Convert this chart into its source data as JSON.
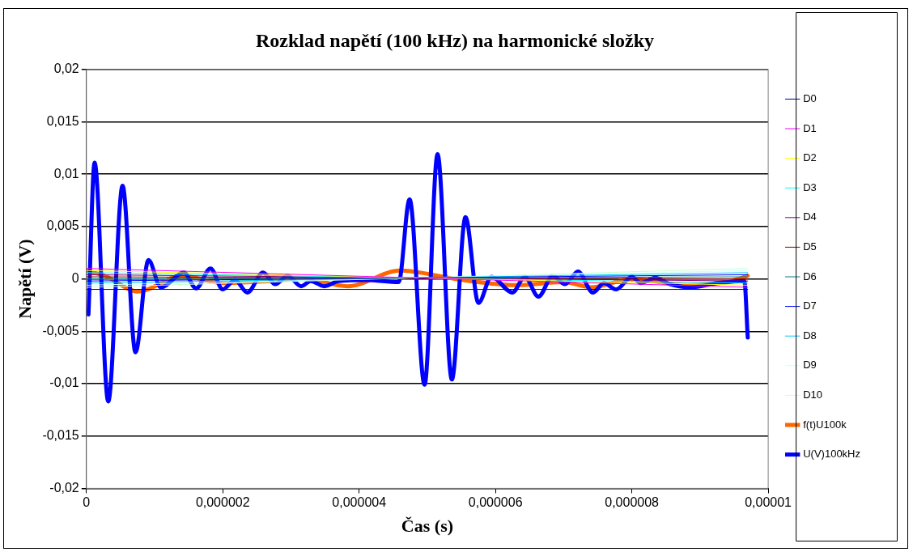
{
  "chart_data": {
    "type": "line",
    "title": "Rozklad napětí (100 kHz) na harmonické složky",
    "xlabel": "Čas (s)",
    "ylabel": "Napětí (V)",
    "xlim": [
      0,
      1e-05
    ],
    "xticks": [
      0,
      {
        "value": 2e-06,
        "label": "0,000002"
      },
      {
        "value": 4e-06,
        "label": "0,000004"
      },
      {
        "value": 6e-06,
        "label": "0,000006"
      },
      {
        "value": 8e-06,
        "label": "0,000008"
      },
      {
        "value": 1e-05,
        "label": "0,00001"
      }
    ],
    "ylim": [
      -0.02,
      0.02
    ],
    "yticks": [
      {
        "value": -0.02,
        "label": "-0,02"
      },
      {
        "value": -0.015,
        "label": "-0,015"
      },
      {
        "value": -0.01,
        "label": "-0,01"
      },
      {
        "value": -0.005,
        "label": "-0,005"
      },
      0,
      {
        "value": 0.005,
        "label": "0,005"
      },
      {
        "value": 0.01,
        "label": "0,01"
      },
      {
        "value": 0.015,
        "label": "0,015"
      },
      {
        "value": 0.02,
        "label": "0,02"
      }
    ],
    "grid": "y",
    "legend": "right",
    "marker": "none",
    "line_style": "solid",
    "series": [
      {
        "name": "D0",
        "color": "#000080",
        "x": [
          0,
          9.7e-06
        ],
        "values": [
          -0.001,
          -0.001
        ]
      },
      {
        "name": "D1",
        "color": "#ff00ff",
        "x": [
          0,
          9.7e-06
        ],
        "values": [
          0.001,
          -0.0008
        ]
      },
      {
        "name": "D2",
        "color": "#ffff00",
        "x": [
          0,
          9.7e-06
        ],
        "values": [
          0.0008,
          -0.0006
        ]
      },
      {
        "name": "D3",
        "color": "#00ffff",
        "x": [
          0,
          9.7e-06
        ],
        "values": [
          0.0006,
          -0.0004
        ]
      },
      {
        "name": "D4",
        "color": "#800080",
        "x": [
          0,
          9.7e-06
        ],
        "values": [
          0.0004,
          -0.0002
        ]
      },
      {
        "name": "D5",
        "color": "#800000",
        "x": [
          0,
          9.7e-06
        ],
        "values": [
          0.0002,
          0
        ]
      },
      {
        "name": "D6",
        "color": "#008080",
        "x": [
          0,
          9.7e-06
        ],
        "values": [
          0,
          0.0002
        ]
      },
      {
        "name": "D7",
        "color": "#0000ff",
        "x": [
          0,
          9.7e-06
        ],
        "values": [
          -0.0002,
          0.0004
        ]
      },
      {
        "name": "D8",
        "color": "#00ccff",
        "x": [
          0,
          9.7e-06
        ],
        "values": [
          -0.0004,
          0.0006
        ]
      },
      {
        "name": "D9",
        "color": "#ccffff",
        "x": [
          0,
          9.7e-06
        ],
        "values": [
          -0.0006,
          0.0008
        ]
      },
      {
        "name": "D10",
        "color": "#ccffcc",
        "x": [
          0,
          9.7e-06
        ],
        "values": [
          -0.0008,
          0.001
        ]
      },
      {
        "name": "f(t)U100k",
        "color": "#ff6600",
        "x": [
          0,
          3e-07,
          7.5e-07,
          1.4e-06,
          2e-06,
          2.7e-06,
          3.2e-06,
          3.83e-06,
          4.6e-06,
          5.5e-06,
          6.3e-06,
          7e-06,
          7.4e-06,
          8e-06,
          8.8e-06,
          9.5e-06,
          9.7e-06
        ],
        "values": [
          0.0008,
          0.0002,
          -0.0012,
          0.0003,
          -0.0004,
          -0.0002,
          0,
          -0.0007,
          0.0008,
          -0.0001,
          -0.0006,
          -0.0003,
          -0.0008,
          0,
          -0.0006,
          -0.0001,
          0.0003
        ]
      },
      {
        "name": "U(V)100kHz",
        "color": "#0000ff",
        "x": [
          3e-08,
          1.2e-07,
          3.2e-07,
          5.3e-07,
          7.2e-07,
          9.1e-07,
          1.09e-06,
          1.43e-06,
          1.61e-06,
          1.82e-06,
          2e-06,
          2.18e-06,
          2.36e-06,
          2.59e-06,
          2.77e-06,
          2.95e-06,
          3.15e-06,
          3.29e-06,
          3.49e-06,
          3.7e-06,
          4.1e-06,
          4.58e-06,
          4.74e-06,
          4.96e-06,
          5.15e-06,
          5.36e-06,
          5.56e-06,
          5.75e-06,
          5.94e-06,
          6.25e-06,
          6.43e-06,
          6.63e-06,
          6.84e-06,
          7.02e-06,
          7.21e-06,
          7.43e-06,
          7.59e-06,
          7.77e-06,
          8e-06,
          8.13e-06,
          8.34e-06,
          8.56e-06,
          8.86e-06,
          9.27e-06,
          9.65e-06,
          9.7e-06
        ],
        "values": [
          -0.0034,
          0.0111,
          -0.0117,
          0.0089,
          -0.007,
          0.0018,
          -0.0008,
          0.0006,
          -0.0009,
          0.001,
          -0.001,
          -0.0001,
          -0.0013,
          0.0006,
          -0.0005,
          0.0003,
          -0.0007,
          -0.0002,
          -0.0007,
          -0.0002,
          -0.0001,
          -0.0003,
          0.0076,
          -0.0101,
          0.0119,
          -0.0096,
          0.0059,
          -0.0023,
          0.0002,
          -0.0013,
          0.0002,
          -0.0017,
          0.0003,
          -0.0005,
          0.0007,
          -0.0013,
          -0.0004,
          -0.001,
          0.0002,
          -0.0004,
          0.0001,
          -0.0005,
          -0.0008,
          -0.0004,
          -0.0002,
          -0.0056
        ]
      }
    ]
  }
}
